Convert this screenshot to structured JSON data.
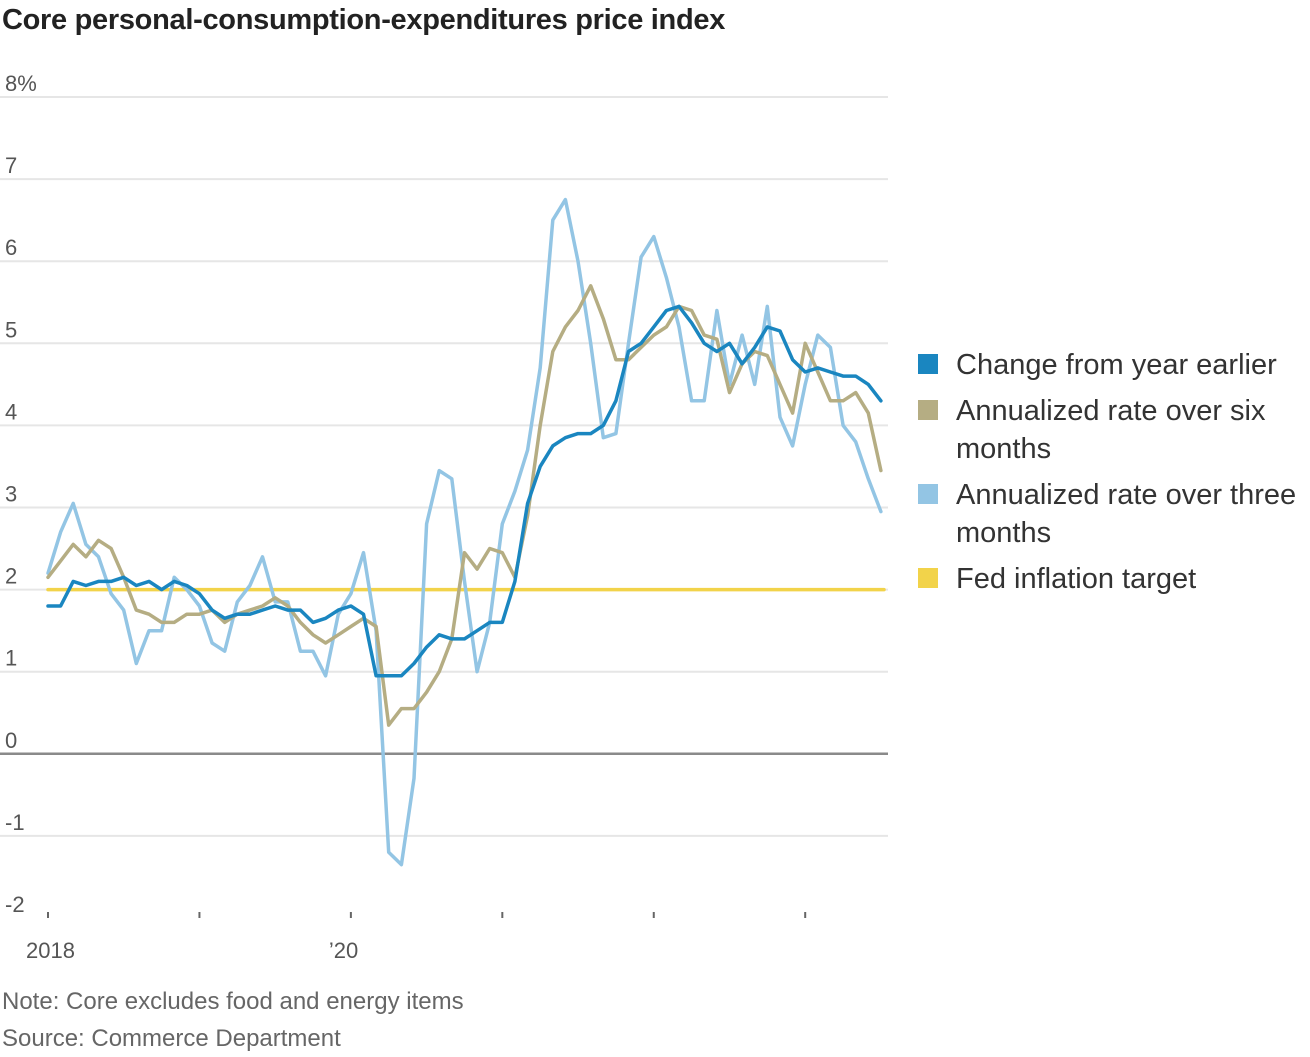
{
  "chart_data": {
    "type": "line",
    "title": "Core personal-consumption-expenditures price index",
    "xlabel": "",
    "ylabel": "",
    "ylim": [
      -2,
      8
    ],
    "y_ticks": [
      {
        "value": 8,
        "label": "8%"
      },
      {
        "value": 7,
        "label": "7"
      },
      {
        "value": 6,
        "label": "6"
      },
      {
        "value": 5,
        "label": "5"
      },
      {
        "value": 4,
        "label": "4"
      },
      {
        "value": 3,
        "label": "3"
      },
      {
        "value": 2,
        "label": "2"
      },
      {
        "value": 1,
        "label": "1"
      },
      {
        "value": 0,
        "label": "0"
      },
      {
        "value": -1,
        "label": "-1"
      },
      {
        "value": -2,
        "label": "-2"
      }
    ],
    "x_start": "2018-01",
    "x_ticks": [
      {
        "month_index": 0,
        "label": "2018"
      },
      {
        "month_index": 12,
        "label": ""
      },
      {
        "month_index": 24,
        "label": "’20"
      },
      {
        "month_index": 36,
        "label": ""
      },
      {
        "month_index": 48,
        "label": ""
      },
      {
        "month_index": 60,
        "label": ""
      }
    ],
    "grid": true,
    "legend_position": "right",
    "series": [
      {
        "name": "Fed inflation target",
        "color": "#f2d34a",
        "kind": "constant",
        "values": [
          2.0,
          2.0
        ]
      },
      {
        "name": "Annualized rate over three months",
        "color": "#93c5e4",
        "values": [
          2.2,
          2.7,
          3.05,
          2.55,
          2.4,
          1.95,
          1.75,
          1.1,
          1.5,
          1.5,
          2.15,
          2.0,
          1.8,
          1.35,
          1.25,
          1.85,
          2.05,
          2.4,
          1.85,
          1.85,
          1.25,
          1.25,
          0.95,
          1.7,
          1.95,
          2.45,
          1.5,
          -1.2,
          -1.35,
          -0.3,
          2.8,
          3.45,
          3.35,
          2.1,
          1.0,
          1.6,
          2.8,
          3.2,
          3.7,
          4.7,
          6.5,
          6.75,
          6.0,
          5.0,
          3.85,
          3.9,
          5.0,
          6.05,
          6.3,
          5.8,
          5.2,
          4.3,
          4.3,
          5.4,
          4.5,
          5.1,
          4.5,
          5.45,
          4.1,
          3.75,
          4.5,
          5.1,
          4.95,
          4.0,
          3.8,
          3.35,
          2.95
        ]
      },
      {
        "name": "Annualized rate over six months",
        "color": "#b5ad83",
        "values": [
          2.15,
          2.35,
          2.55,
          2.4,
          2.6,
          2.5,
          2.15,
          1.75,
          1.7,
          1.6,
          1.6,
          1.7,
          1.7,
          1.75,
          1.6,
          1.7,
          1.75,
          1.8,
          1.9,
          1.8,
          1.6,
          1.45,
          1.35,
          1.45,
          1.55,
          1.65,
          1.55,
          0.35,
          0.55,
          0.55,
          0.75,
          1.0,
          1.4,
          2.45,
          2.25,
          2.5,
          2.45,
          2.15,
          2.9,
          4.0,
          4.9,
          5.2,
          5.4,
          5.7,
          5.3,
          4.8,
          4.8,
          4.95,
          5.1,
          5.2,
          5.45,
          5.4,
          5.1,
          5.05,
          4.4,
          4.75,
          4.9,
          4.85,
          4.5,
          4.15,
          5.0,
          4.65,
          4.3,
          4.3,
          4.4,
          4.15,
          3.45
        ]
      },
      {
        "name": "Change from year earlier",
        "color": "#1a86c0",
        "values": [
          1.8,
          1.8,
          2.1,
          2.05,
          2.1,
          2.1,
          2.15,
          2.05,
          2.1,
          2.0,
          2.1,
          2.05,
          1.95,
          1.75,
          1.65,
          1.7,
          1.7,
          1.75,
          1.8,
          1.75,
          1.75,
          1.6,
          1.65,
          1.75,
          1.8,
          1.7,
          0.95,
          0.95,
          0.95,
          1.1,
          1.3,
          1.45,
          1.4,
          1.4,
          1.5,
          1.6,
          1.6,
          2.1,
          3.05,
          3.5,
          3.75,
          3.85,
          3.9,
          3.9,
          4.0,
          4.3,
          4.9,
          5.0,
          5.2,
          5.4,
          5.45,
          5.25,
          5.0,
          4.9,
          5.0,
          4.75,
          4.95,
          5.2,
          5.15,
          4.8,
          4.65,
          4.7,
          4.65,
          4.6,
          4.6,
          4.5,
          4.3
        ]
      }
    ],
    "legend": [
      {
        "label": "Change from year earlier",
        "color": "#1a86c0"
      },
      {
        "label": "Annualized rate over six months",
        "color": "#b5ad83"
      },
      {
        "label": "Annualized rate over three months",
        "color": "#93c5e4"
      },
      {
        "label": "Fed inflation target",
        "color": "#f2d34a"
      }
    ]
  },
  "footer": {
    "note": "Note: Core excludes food and energy items",
    "source": "Source: Commerce Department"
  },
  "colors": {
    "gridline": "#e6e6e6",
    "zero_line": "#8a8a8a",
    "axis_tick": "#666666"
  }
}
